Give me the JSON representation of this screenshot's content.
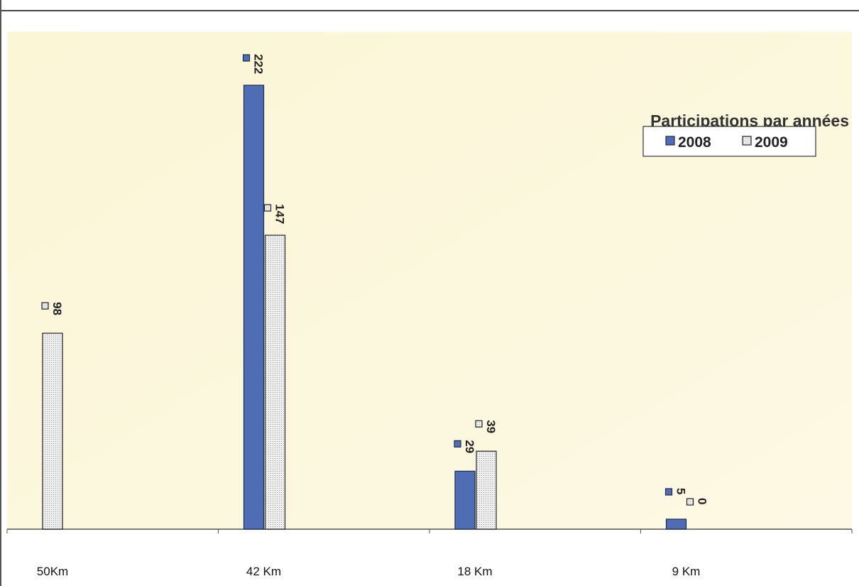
{
  "chart_data": {
    "type": "bar",
    "title": "Participations par années",
    "categories": [
      "50Km",
      "42 Km",
      "18 Km",
      "9 Km"
    ],
    "series": [
      {
        "name": "2008",
        "values": [
          null,
          222,
          29,
          5
        ],
        "color": "#4f6db5"
      },
      {
        "name": "2009",
        "values": [
          98,
          147,
          39,
          0
        ],
        "color": "#d8d8d8"
      }
    ],
    "ylim": [
      0,
      240
    ],
    "grid": false,
    "legend": "top-right",
    "background": "#fbf6d9"
  }
}
